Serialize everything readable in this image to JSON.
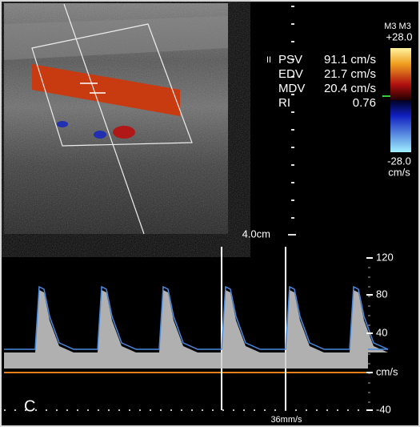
{
  "color_bar": {
    "mode": "M3 M3",
    "max": "+28.0",
    "min": "-28.0",
    "unit": "cm/s"
  },
  "measurements": {
    "marker": "II",
    "rows": [
      [
        "PSV",
        "91.1 cm/s"
      ],
      [
        "EDV",
        "21.7 cm/s"
      ],
      [
        "MDV",
        "20.4 cm/s"
      ],
      [
        "RI",
        "0.76"
      ]
    ]
  },
  "depth": "4.0cm",
  "spectrum": {
    "scale": [
      "120",
      "80",
      "40",
      "cm/s",
      "-40"
    ],
    "panel_label": "C",
    "sweep": "36mm/s"
  }
}
